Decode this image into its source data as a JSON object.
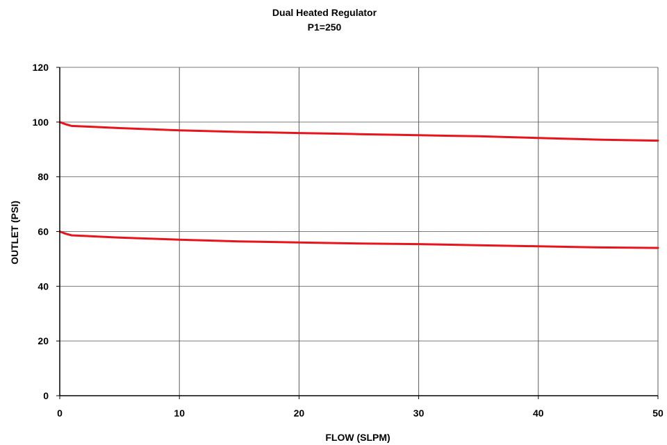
{
  "chart_data": {
    "type": "line",
    "title": "Dual Heated Regulator",
    "subtitle": "P1=250",
    "xlabel": "FLOW (SLPM)",
    "ylabel": "OUTLET (PSI)",
    "xlim": [
      0,
      50
    ],
    "ylim": [
      0,
      120
    ],
    "x_ticks": [
      "0",
      "10",
      "20",
      "30",
      "40",
      "50"
    ],
    "y_ticks": [
      "0",
      "20",
      "40",
      "60",
      "80",
      "100",
      "120"
    ],
    "grid": true,
    "legend": "none",
    "series_color": "#e8141c",
    "series": [
      {
        "x": [
          0,
          0.5,
          1,
          2,
          5,
          10,
          15,
          20,
          25,
          30,
          35,
          40,
          45,
          50
        ],
        "y": [
          100,
          99.2,
          98.6,
          98.4,
          97.8,
          97,
          96.4,
          96,
          95.6,
          95.2,
          94.8,
          94.2,
          93.6,
          93.2
        ]
      },
      {
        "x": [
          0,
          0.5,
          1,
          2,
          5,
          10,
          15,
          20,
          25,
          30,
          35,
          40,
          45,
          50
        ],
        "y": [
          60,
          59.2,
          58.6,
          58.4,
          57.8,
          57,
          56.4,
          56,
          55.6,
          55.4,
          55,
          54.6,
          54.2,
          54
        ]
      }
    ]
  }
}
